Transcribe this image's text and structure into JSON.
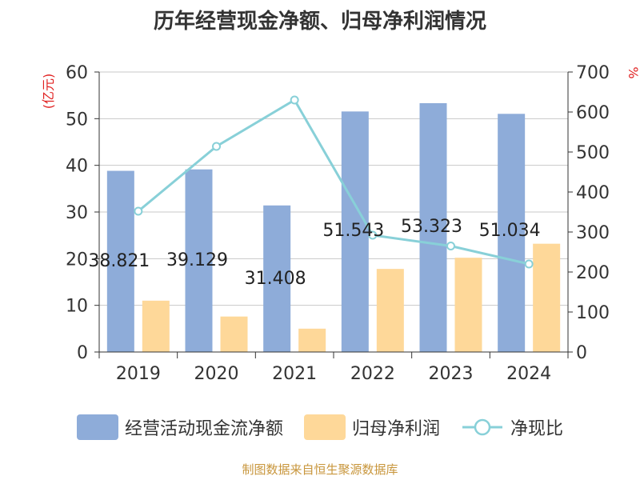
{
  "chart_data": {
    "type": "bar",
    "title": "历年经营现金净额、归母净利润情况",
    "categories": [
      "2019",
      "2020",
      "2021",
      "2022",
      "2023",
      "2024"
    ],
    "series": [
      {
        "name": "经营活动现金流净额",
        "kind": "bar",
        "axis": "left",
        "color": "#8eacd9",
        "values": [
          38.821,
          39.129,
          31.408,
          51.543,
          53.323,
          51.034
        ],
        "labels": [
          "38.821",
          "39.129",
          "31.408",
          "51.543",
          "53.323",
          "51.034"
        ]
      },
      {
        "name": "归母净利润",
        "kind": "bar",
        "axis": "left",
        "color": "#fed899",
        "values": [
          11.0,
          7.6,
          5.0,
          17.8,
          20.2,
          23.2
        ]
      },
      {
        "name": "净现比",
        "kind": "line",
        "axis": "right",
        "color": "#88d0d8",
        "values": [
          352,
          514,
          630,
          292,
          265,
          220
        ]
      }
    ],
    "ylabel": "(亿元)",
    "y2label": "%",
    "ylim": [
      0,
      60
    ],
    "y2lim": [
      0,
      700
    ],
    "yticks": [
      0,
      10,
      20,
      30,
      40,
      50,
      60
    ],
    "y2ticks": [
      0,
      100,
      200,
      300,
      400,
      500,
      600,
      700
    ],
    "grid": true,
    "legend_position": "bottom"
  },
  "source": "制图数据来自恒生聚源数据库"
}
